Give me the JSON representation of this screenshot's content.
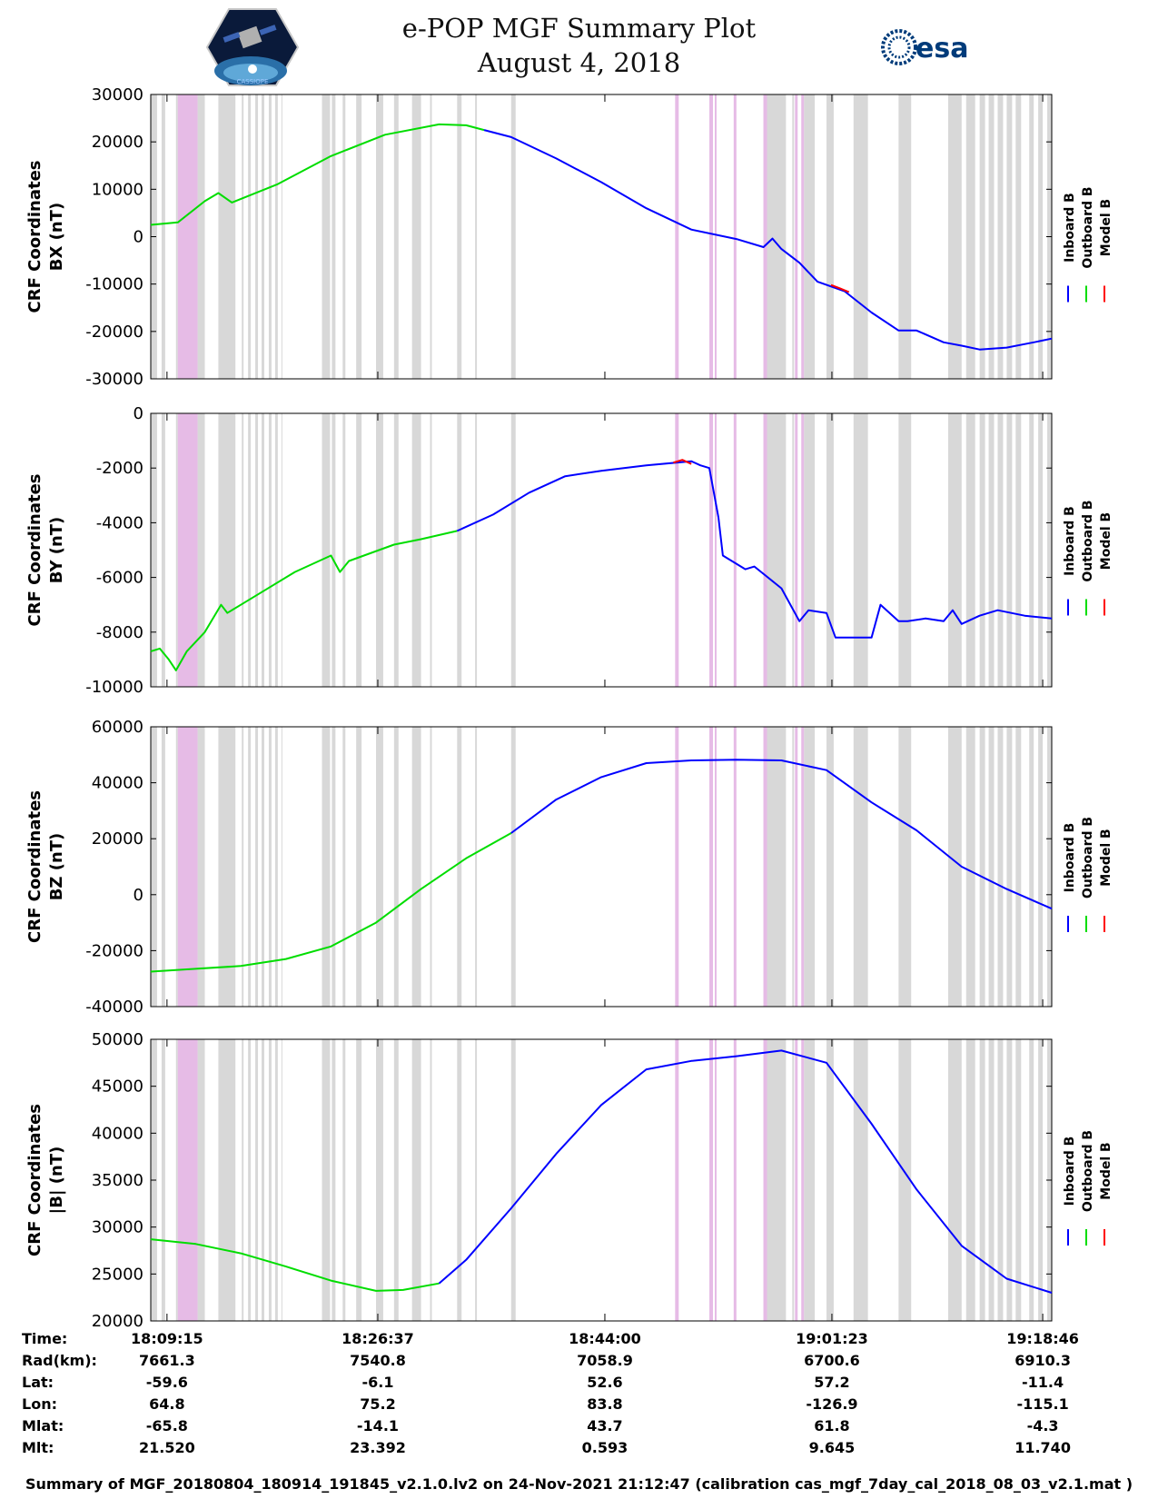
{
  "header": {
    "title_line1": "e-POP MGF Summary Plot",
    "title_line2": "August 4, 2018",
    "left_logo_text": "CASSIOPE",
    "right_logo_text": "esa"
  },
  "colors": {
    "inboard": "#0000ff",
    "outboard": "#00dd00",
    "model": "#ff0000",
    "gap_gray": "#d8d8d8",
    "gap_pink": "#e6bbe6"
  },
  "chart_data": [
    {
      "type": "line",
      "ylabel_line1": "CRF Coordinates",
      "ylabel_line2": "BX (nT)",
      "ylim": [
        -30000,
        30000
      ],
      "yticks": [
        "30000",
        "20000",
        "10000",
        "0",
        "-10000",
        "-20000",
        "-30000"
      ],
      "xlim": [
        0,
        1.0
      ],
      "legend": [
        "Inboard B",
        "Outboard B",
        "Model B"
      ],
      "series": [
        {
          "name": "Outboard B",
          "x": [
            0,
            0.03,
            0.06,
            0.075,
            0.09,
            0.14,
            0.2,
            0.26,
            0.32,
            0.35,
            0.37
          ],
          "y": [
            2500,
            3000,
            7500,
            9200,
            7200,
            11000,
            17000,
            21500,
            23700,
            23500,
            22500
          ]
        },
        {
          "name": "Inboard B",
          "x": [
            0.37,
            0.4,
            0.45,
            0.5,
            0.55,
            0.6,
            0.65,
            0.68,
            0.69,
            0.7,
            0.72,
            0.74,
            0.77,
            0.8,
            0.83,
            0.85,
            0.88,
            0.9,
            0.92,
            0.95,
            0.98,
            1.0
          ],
          "y": [
            22500,
            21000,
            16500,
            11500,
            6000,
            1500,
            -500,
            -2200,
            -400,
            -2600,
            -5500,
            -9500,
            -11500,
            -16000,
            -19800,
            -19800,
            -22300,
            -23000,
            -23800,
            -23400,
            -22300,
            -21500
          ]
        },
        {
          "name": "Model B",
          "x": [
            0.755,
            0.765,
            0.775
          ],
          "y": [
            -10200,
            -10900,
            -11700
          ]
        }
      ]
    },
    {
      "type": "line",
      "ylabel_line1": "CRF Coordinates",
      "ylabel_line2": "BY (nT)",
      "ylim": [
        -10000,
        0
      ],
      "yticks": [
        "0",
        "-2000",
        "-4000",
        "-6000",
        "-8000",
        "-10000"
      ],
      "xlim": [
        0,
        1.0
      ],
      "legend": [
        "Inboard B",
        "Outboard B",
        "Model B"
      ],
      "series": [
        {
          "name": "Outboard B",
          "x": [
            0,
            0.01,
            0.02,
            0.028,
            0.04,
            0.06,
            0.078,
            0.085,
            0.1,
            0.12,
            0.16,
            0.2,
            0.2,
            0.21,
            0.22,
            0.27,
            0.3,
            0.34
          ],
          "y": [
            -8700,
            -8600,
            -9000,
            -9400,
            -8700,
            -8000,
            -7000,
            -7300,
            -7000,
            -6600,
            -5800,
            -5200,
            -5200,
            -5800,
            -5400,
            -4800,
            -4600,
            -4300
          ]
        },
        {
          "name": "Inboard B",
          "x": [
            0.34,
            0.38,
            0.42,
            0.46,
            0.5,
            0.55,
            0.6,
            0.61,
            0.62,
            0.63,
            0.635,
            0.66,
            0.67,
            0.7,
            0.72,
            0.73,
            0.75,
            0.76,
            0.8,
            0.81,
            0.83,
            0.84,
            0.86,
            0.88,
            0.89,
            0.9,
            0.92,
            0.94,
            0.97,
            1.0
          ],
          "y": [
            -4300,
            -3700,
            -2900,
            -2300,
            -2100,
            -1900,
            -1750,
            -1900,
            -2000,
            -3800,
            -5200,
            -5700,
            -5600,
            -6400,
            -7600,
            -7200,
            -7300,
            -8200,
            -8200,
            -7000,
            -7600,
            -7600,
            -7500,
            -7600,
            -7200,
            -7700,
            -7400,
            -7200,
            -7400,
            -7500
          ]
        },
        {
          "name": "Model B",
          "x": [
            0.58,
            0.59,
            0.6
          ],
          "y": [
            -1800,
            -1700,
            -1850
          ]
        }
      ]
    },
    {
      "type": "line",
      "ylabel_line1": "CRF Coordinates",
      "ylabel_line2": "BZ (nT)",
      "ylim": [
        -40000,
        60000
      ],
      "yticks": [
        "60000",
        "40000",
        "20000",
        "0",
        "-20000",
        "-40000"
      ],
      "xlim": [
        0,
        1.0
      ],
      "legend": [
        "Inboard B",
        "Outboard B",
        "Model B"
      ],
      "series": [
        {
          "name": "Outboard B",
          "x": [
            0,
            0.05,
            0.1,
            0.15,
            0.2,
            0.25,
            0.3,
            0.35,
            0.4
          ],
          "y": [
            -27500,
            -26500,
            -25500,
            -23000,
            -18500,
            -10000,
            2000,
            13000,
            22000
          ]
        },
        {
          "name": "Inboard B",
          "x": [
            0.4,
            0.45,
            0.5,
            0.55,
            0.6,
            0.65,
            0.7,
            0.75,
            0.8,
            0.85,
            0.9,
            0.95,
            1.0
          ],
          "y": [
            22000,
            34000,
            42000,
            47000,
            48000,
            48200,
            48000,
            44500,
            33000,
            23000,
            10000,
            2000,
            -5000
          ]
        }
      ]
    },
    {
      "type": "line",
      "ylabel_line1": "CRF Coordinates",
      "ylabel_line2": "|B| (nT)",
      "ylim": [
        20000,
        50000
      ],
      "yticks": [
        "50000",
        "45000",
        "40000",
        "35000",
        "30000",
        "25000",
        "20000"
      ],
      "xlim": [
        0,
        1.0
      ],
      "legend": [
        "Inboard B",
        "Outboard B",
        "Model B"
      ],
      "series": [
        {
          "name": "Outboard B",
          "x": [
            0,
            0.05,
            0.1,
            0.15,
            0.2,
            0.25,
            0.28,
            0.32
          ],
          "y": [
            28700,
            28200,
            27200,
            25800,
            24300,
            23200,
            23300,
            24000
          ]
        },
        {
          "name": "Inboard B",
          "x": [
            0.32,
            0.35,
            0.4,
            0.45,
            0.5,
            0.55,
            0.6,
            0.65,
            0.7,
            0.75,
            0.8,
            0.85,
            0.9,
            0.95,
            1.0
          ],
          "y": [
            24000,
            26500,
            32000,
            37800,
            43000,
            46800,
            47700,
            48200,
            48800,
            47500,
            41000,
            34000,
            28000,
            24500,
            23000
          ]
        }
      ]
    }
  ],
  "bands": {
    "gray": [
      [
        0.0,
        0.007
      ],
      [
        0.012,
        0.016
      ],
      [
        0.028,
        0.03
      ],
      [
        0.052,
        0.06
      ],
      [
        0.075,
        0.094
      ],
      [
        0.101,
        0.103
      ],
      [
        0.108,
        0.111
      ],
      [
        0.116,
        0.119
      ],
      [
        0.123,
        0.126
      ],
      [
        0.131,
        0.134
      ],
      [
        0.138,
        0.141
      ],
      [
        0.145,
        0.146
      ],
      [
        0.19,
        0.199
      ],
      [
        0.201,
        0.205
      ],
      [
        0.213,
        0.216
      ],
      [
        0.228,
        0.234
      ],
      [
        0.25,
        0.258
      ],
      [
        0.27,
        0.275
      ],
      [
        0.29,
        0.3
      ],
      [
        0.31,
        0.312
      ],
      [
        0.34,
        0.345
      ],
      [
        0.36,
        0.362
      ],
      [
        0.4,
        0.405
      ],
      [
        0.68,
        0.705
      ],
      [
        0.712,
        0.714
      ],
      [
        0.725,
        0.737
      ],
      [
        0.75,
        0.758
      ],
      [
        0.78,
        0.796
      ],
      [
        0.83,
        0.844
      ],
      [
        0.885,
        0.9
      ],
      [
        0.905,
        0.915
      ],
      [
        0.92,
        0.926
      ],
      [
        0.93,
        0.936
      ],
      [
        0.94,
        0.946
      ],
      [
        0.95,
        0.956
      ],
      [
        0.96,
        0.966
      ],
      [
        0.975,
        0.98
      ],
      [
        0.985,
        0.99
      ],
      [
        0.995,
        1.0
      ]
    ],
    "pink": [
      [
        0.03,
        0.052
      ],
      [
        0.582,
        0.586
      ],
      [
        0.62,
        0.624
      ],
      [
        0.626,
        0.628
      ],
      [
        0.647,
        0.65
      ],
      [
        0.68,
        0.684
      ],
      [
        0.715,
        0.718
      ],
      [
        0.722,
        0.725
      ]
    ]
  },
  "xticks": [
    "18:09:15",
    "18:26:37",
    "18:44:00",
    "19:01:23",
    "19:18:46"
  ],
  "ephemeris": {
    "rows": [
      {
        "label": "Time:",
        "values": [
          "18:09:15",
          "18:26:37",
          "18:44:00",
          "19:01:23",
          "19:18:46"
        ]
      },
      {
        "label": "Rad(km):",
        "values": [
          "7661.3",
          "7540.8",
          "7058.9",
          "6700.6",
          "6910.3"
        ]
      },
      {
        "label": "Lat:",
        "values": [
          "-59.6",
          "-6.1",
          "52.6",
          "57.2",
          "-11.4"
        ]
      },
      {
        "label": "Lon:",
        "values": [
          "64.8",
          "75.2",
          "83.8",
          "-126.9",
          "-115.1"
        ]
      },
      {
        "label": "Mlat:",
        "values": [
          "-65.8",
          "-14.1",
          "43.7",
          "61.8",
          "-4.3"
        ]
      },
      {
        "label": "Mlt:",
        "values": [
          "21.520",
          "23.392",
          "0.593",
          "9.645",
          "11.740"
        ]
      }
    ]
  },
  "footer": "Summary of MGF_20180804_180914_191845_v2.1.0.lv2 on 24-Nov-2021 21:12:47 (calibration cas_mgf_7day_cal_2018_08_03_v2.1.mat )"
}
